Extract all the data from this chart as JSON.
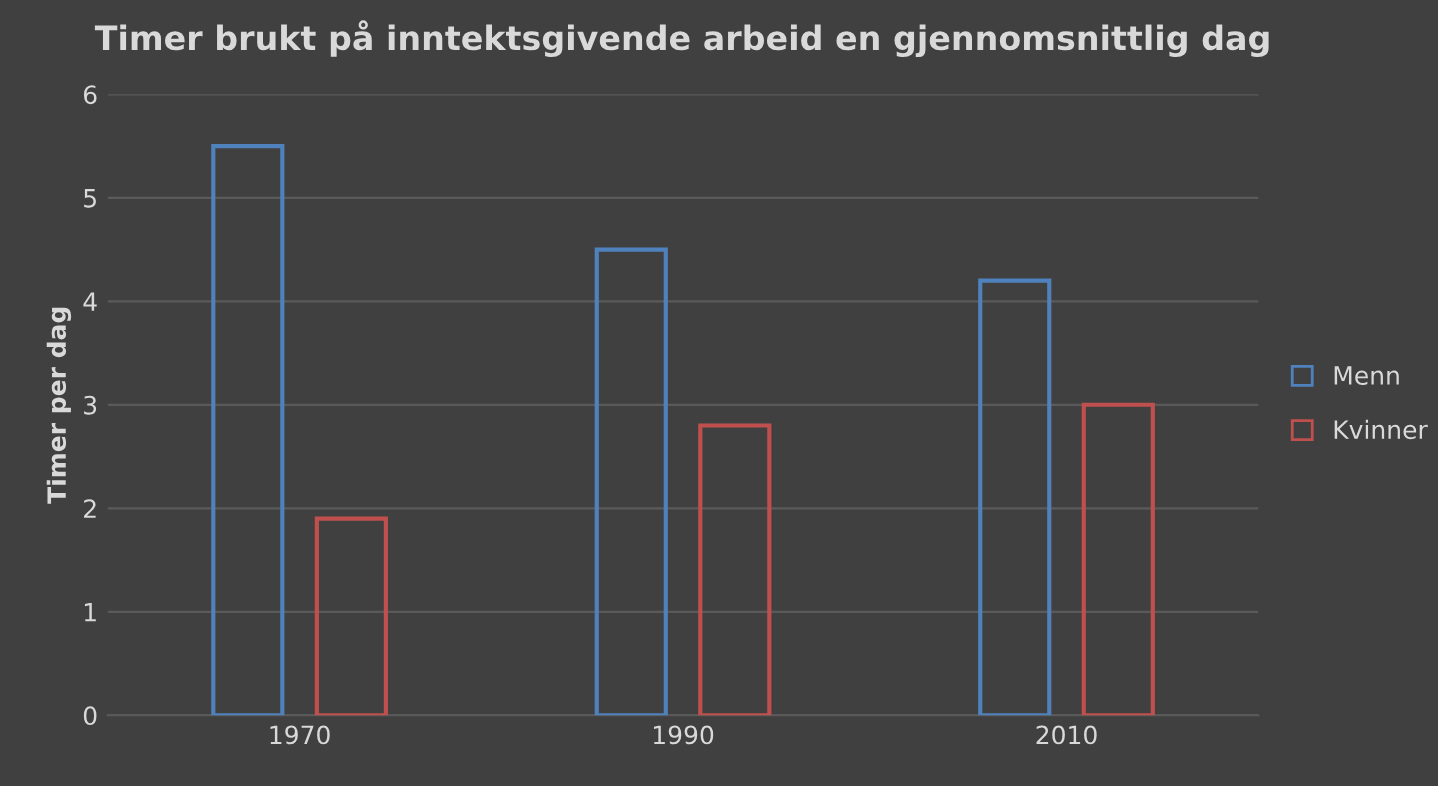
{
  "chart_data": {
    "type": "bar",
    "title": "Timer brukt på inntektsgivende arbeid en gjennomsnittlig dag",
    "ylabel": "Timer per dag",
    "categories": [
      "1970",
      "1990",
      "2010"
    ],
    "series": [
      {
        "name": "Menn",
        "color": "#4f81bd",
        "values": [
          5.5,
          4.5,
          4.2
        ]
      },
      {
        "name": "Kvinner",
        "color": "#c0504d",
        "values": [
          1.9,
          2.8,
          3.0
        ]
      }
    ],
    "ylim": [
      0,
      6
    ],
    "yticks": [
      0,
      1,
      2,
      3,
      4,
      5,
      6
    ],
    "grid": "y",
    "legend": "right"
  }
}
